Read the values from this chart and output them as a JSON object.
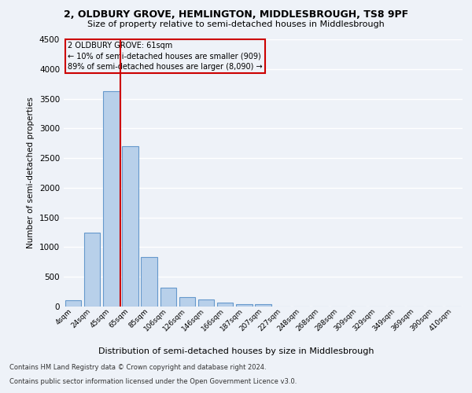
{
  "title1": "2, OLDBURY GROVE, HEMLINGTON, MIDDLESBROUGH, TS8 9PF",
  "title2": "Size of property relative to semi-detached houses in Middlesbrough",
  "xlabel": "Distribution of semi-detached houses by size in Middlesbrough",
  "ylabel": "Number of semi-detached properties",
  "categories": [
    "4sqm",
    "24sqm",
    "45sqm",
    "65sqm",
    "85sqm",
    "106sqm",
    "126sqm",
    "146sqm",
    "166sqm",
    "187sqm",
    "207sqm",
    "227sqm",
    "248sqm",
    "268sqm",
    "288sqm",
    "309sqm",
    "329sqm",
    "349sqm",
    "369sqm",
    "390sqm",
    "410sqm"
  ],
  "values": [
    100,
    1240,
    3620,
    2700,
    840,
    320,
    165,
    120,
    70,
    45,
    45,
    0,
    0,
    0,
    0,
    0,
    0,
    0,
    0,
    0,
    0
  ],
  "bar_color": "#b8d0ea",
  "bar_edge_color": "#6699cc",
  "annotation_text_line1": "2 OLDBURY GROVE: 61sqm",
  "annotation_text_line2": "← 10% of semi-detached houses are smaller (909)",
  "annotation_text_line3": "89% of semi-detached houses are larger (8,090) →",
  "footer1": "Contains HM Land Registry data © Crown copyright and database right 2024.",
  "footer2": "Contains public sector information licensed under the Open Government Licence v3.0.",
  "ylim": [
    0,
    4500
  ],
  "yticks": [
    0,
    500,
    1000,
    1500,
    2000,
    2500,
    3000,
    3500,
    4000,
    4500
  ],
  "background_color": "#eef2f8",
  "grid_color": "#ffffff",
  "red_line_color": "#cc0000",
  "box_edge_color": "#cc0000",
  "red_line_x": 2.5
}
